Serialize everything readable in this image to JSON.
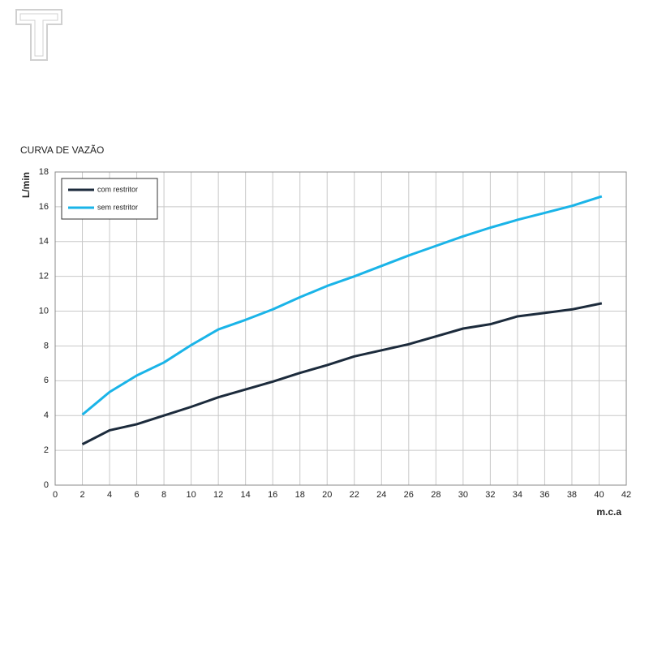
{
  "chart_data": {
    "type": "line",
    "title": "CURVA DE VAZÃO",
    "y_label": "L/min",
    "x_label": "m.c.a",
    "x": [
      2,
      4,
      6,
      8,
      10,
      12,
      14,
      16,
      18,
      20,
      22,
      24,
      26,
      28,
      30,
      32,
      34,
      36,
      38,
      40.2
    ],
    "series": [
      {
        "name": "com restritor",
        "color": "#1c2b3c",
        "values": [
          2.35,
          3.15,
          3.5,
          4.0,
          4.5,
          5.05,
          5.5,
          5.95,
          6.45,
          6.9,
          7.4,
          7.75,
          8.1,
          8.55,
          9.0,
          9.25,
          9.7,
          9.9,
          10.1,
          10.45
        ]
      },
      {
        "name": "sem restritor",
        "color": "#1ab4e8",
        "values": [
          4.05,
          5.35,
          6.3,
          7.05,
          8.05,
          8.95,
          9.5,
          10.1,
          10.8,
          11.45,
          12.0,
          12.6,
          13.2,
          13.75,
          14.3,
          14.8,
          15.25,
          15.65,
          16.05,
          16.6
        ]
      }
    ],
    "xlim": [
      0,
      42
    ],
    "xticks": [
      0,
      2,
      4,
      6,
      8,
      10,
      12,
      14,
      16,
      18,
      20,
      22,
      24,
      26,
      28,
      30,
      32,
      34,
      36,
      38,
      40,
      42
    ],
    "ylim": [
      0,
      18
    ],
    "yticks": [
      0,
      2,
      4,
      6,
      8,
      10,
      12,
      14,
      16,
      18
    ],
    "grid": true,
    "legend": "top-left"
  }
}
